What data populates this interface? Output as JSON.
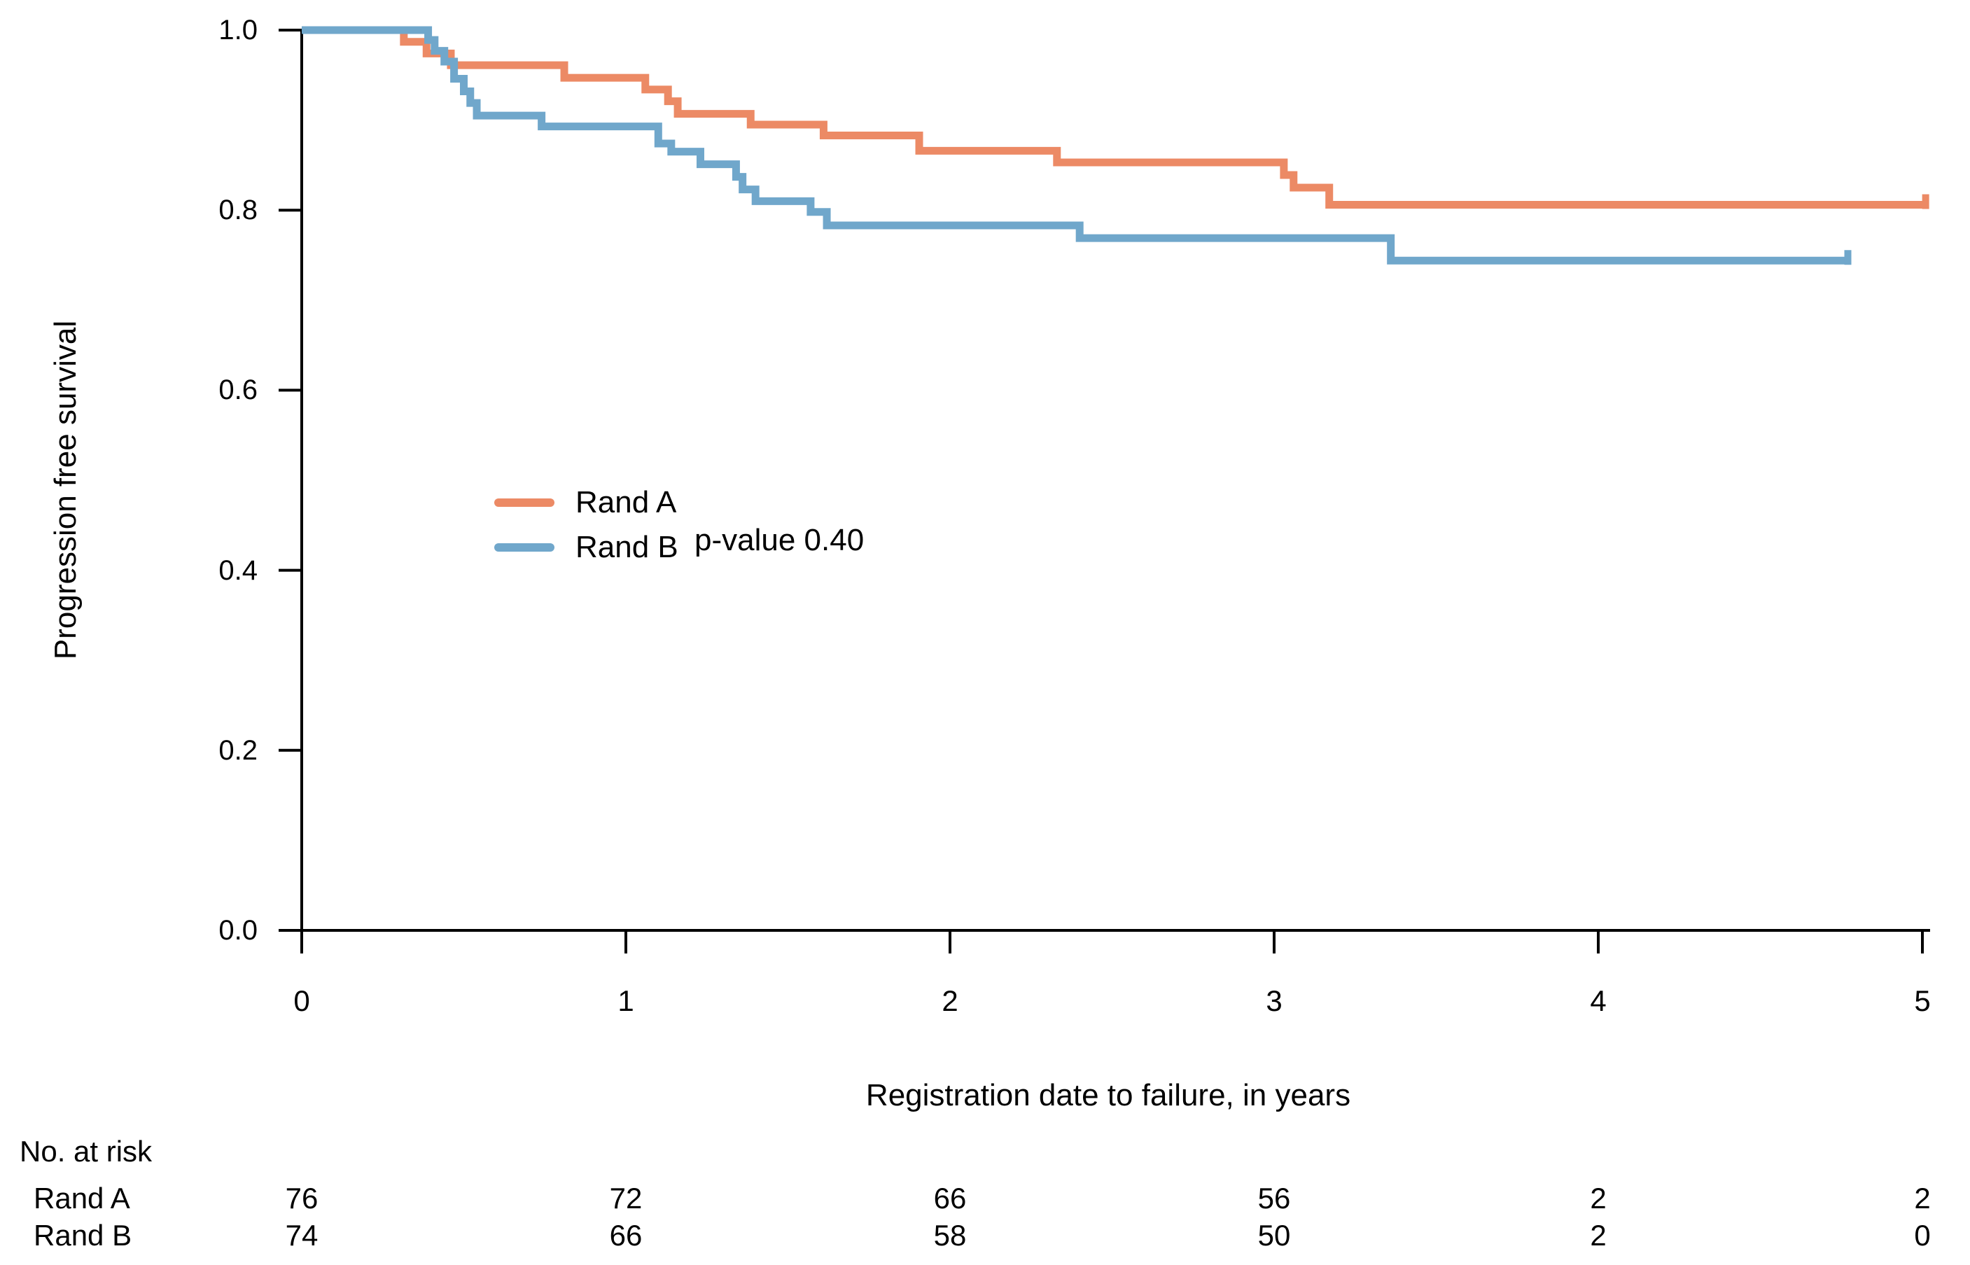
{
  "chart_data": {
    "type": "line",
    "subtype": "kaplan_meier_step_curves",
    "title": "",
    "xlabel": "Registration date to failure, in years",
    "ylabel": "Progression free survival",
    "xlim": [
      0,
      5
    ],
    "ylim": [
      0.0,
      1.0
    ],
    "grid": false,
    "x_ticks": [
      0,
      1,
      2,
      3,
      4,
      5
    ],
    "y_ticks": [
      "1.0",
      "0.8",
      "0.6",
      "0.4",
      "0.2",
      "0.0"
    ],
    "legend_position": "inside-middle-left",
    "annotation": "p-value 0.40",
    "axis_color": "#000000",
    "series": [
      {
        "name": "Rand A",
        "color": "#EC8A65",
        "start": [
          0,
          1.0
        ],
        "drops": [
          [
            0.315,
            0.987
          ],
          [
            0.385,
            0.974
          ],
          [
            0.46,
            0.961
          ],
          [
            0.81,
            0.947
          ],
          [
            1.06,
            0.934
          ],
          [
            1.13,
            0.921
          ],
          [
            1.16,
            0.907
          ],
          [
            1.385,
            0.895
          ],
          [
            1.61,
            0.883
          ],
          [
            1.905,
            0.866
          ],
          [
            2.33,
            0.853
          ],
          [
            3.03,
            0.839
          ],
          [
            3.06,
            0.825
          ],
          [
            3.17,
            0.806
          ]
        ],
        "end_time": 5.01,
        "end_survival": 0.806,
        "end_censor_tick": true
      },
      {
        "name": "Rand B",
        "color": "#70A7CB",
        "start": [
          0,
          1.0
        ],
        "drops": [
          [
            0.39,
            0.989
          ],
          [
            0.41,
            0.977
          ],
          [
            0.44,
            0.965
          ],
          [
            0.47,
            0.946
          ],
          [
            0.5,
            0.932
          ],
          [
            0.52,
            0.919
          ],
          [
            0.54,
            0.905
          ],
          [
            0.74,
            0.893
          ],
          [
            1.1,
            0.874
          ],
          [
            1.14,
            0.865
          ],
          [
            1.23,
            0.851
          ],
          [
            1.34,
            0.837
          ],
          [
            1.36,
            0.823
          ],
          [
            1.4,
            0.81
          ],
          [
            1.57,
            0.798
          ],
          [
            1.62,
            0.783
          ],
          [
            2.4,
            0.769
          ],
          [
            3.36,
            0.744
          ]
        ],
        "end_time": 4.77,
        "end_survival": 0.744,
        "end_censor_tick": true
      }
    ]
  },
  "at_risk": {
    "title": "No. at risk",
    "time_points": [
      0,
      1,
      2,
      3,
      4,
      5
    ],
    "rows": [
      {
        "label": "Rand A",
        "counts": [
          76,
          72,
          66,
          56,
          2,
          2
        ]
      },
      {
        "label": "Rand B",
        "counts": [
          74,
          66,
          58,
          50,
          2,
          0
        ]
      }
    ]
  }
}
